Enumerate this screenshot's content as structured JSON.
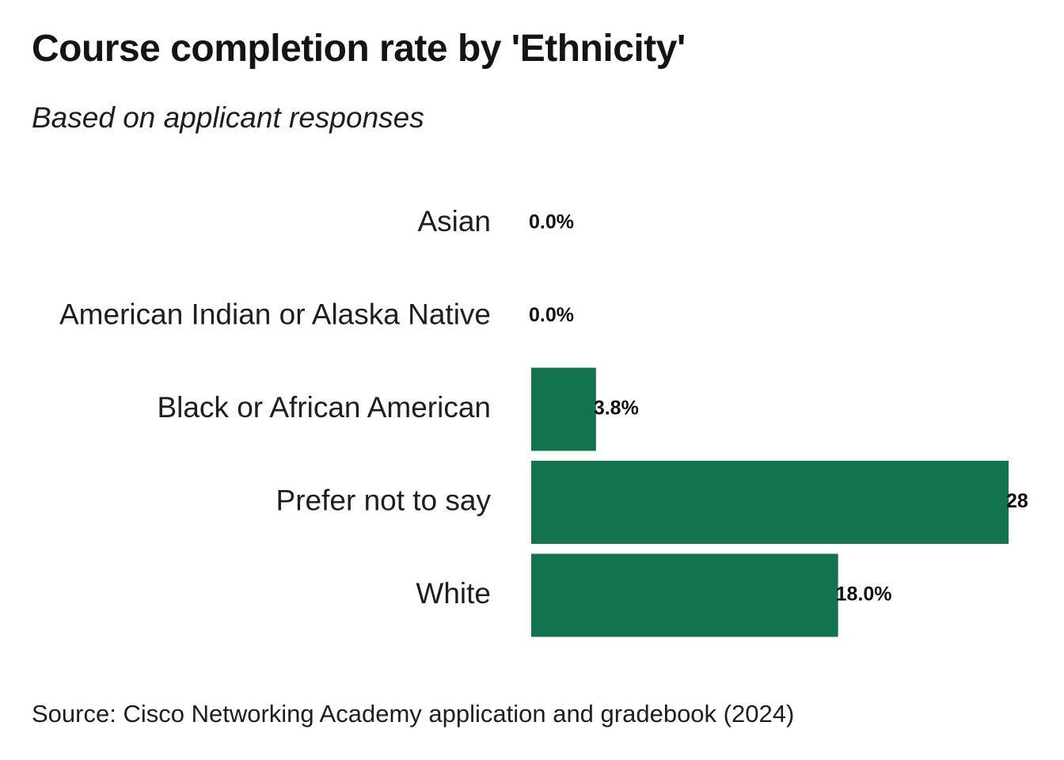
{
  "title": "Course completion rate by 'Ethnicity'",
  "subtitle": "Based on applicant responses",
  "source": "Source: Cisco Networking Academy application and gradebook (2024)",
  "colors": {
    "bar": "#12734c",
    "label": "#111111"
  },
  "chart_data": {
    "type": "bar",
    "orientation": "horizontal",
    "categories": [
      "Asian",
      "American Indian or Alaska Native",
      "Black or African American",
      "Prefer not to say",
      "White"
    ],
    "values": [
      0.0,
      0.0,
      3.8,
      28.0,
      18.0
    ],
    "data_labels": [
      "0.0%",
      "0.0%",
      "3.8%",
      "28",
      "18.0%"
    ],
    "unit": "%",
    "xlim": [
      0,
      28
    ],
    "grid": false,
    "legend": "none"
  }
}
